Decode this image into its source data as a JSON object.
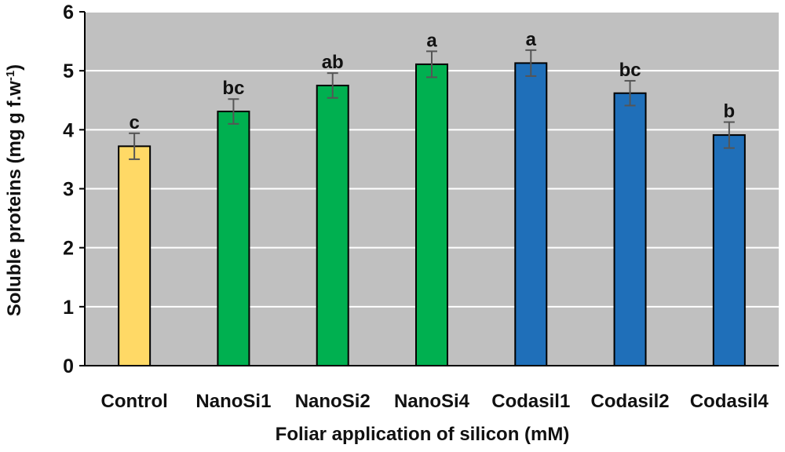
{
  "chart_data": {
    "type": "bar",
    "title": "",
    "xlabel": "Foliar application of silicon (mM)",
    "ylabel_main": "Soluble proteins (mg  g f.w",
    "ylabel_sup": "-1",
    "ylabel_close": ")",
    "ylim": [
      0,
      6
    ],
    "yticks": [
      0,
      1,
      2,
      3,
      4,
      5,
      6
    ],
    "grid": true,
    "plot_background": "#C0C0C0",
    "categories": [
      "Control",
      "NanoSi1",
      "NanoSi2",
      "NanoSi4",
      "Codasil1",
      "Codasil2",
      "Codasil4"
    ],
    "values": [
      3.72,
      4.31,
      4.75,
      5.11,
      5.13,
      4.62,
      3.91
    ],
    "errors": [
      0.22,
      0.21,
      0.21,
      0.22,
      0.22,
      0.21,
      0.22
    ],
    "significance_letters": [
      "c",
      "bc",
      "ab",
      "a",
      "a",
      "bc",
      "b"
    ],
    "bar_colors": [
      "#FFD966",
      "#00B050",
      "#00B050",
      "#00B050",
      "#1F6FB9",
      "#1F6FB9",
      "#1F6FB9"
    ]
  }
}
